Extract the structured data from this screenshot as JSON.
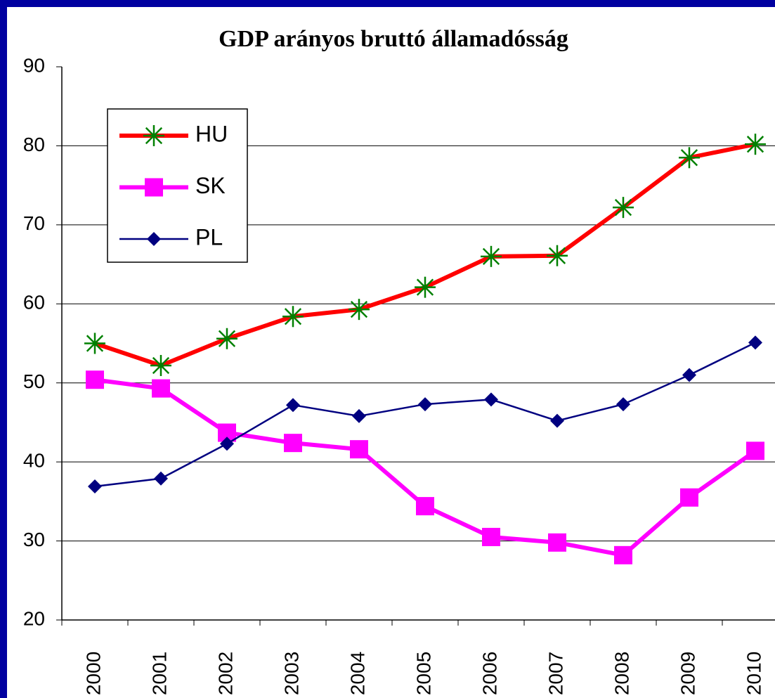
{
  "chart_data": {
    "type": "line",
    "title": "GDP arányos bruttó államadósság",
    "categories": [
      "2000",
      "2001",
      "2002",
      "2003",
      "2004",
      "2005",
      "2006",
      "2007",
      "2008",
      "2009",
      "2010"
    ],
    "series": [
      {
        "name": "HU",
        "color": "#ff0000",
        "marker_color": "#008000",
        "marker": "asterisk",
        "values": [
          55.0,
          52.2,
          55.6,
          58.4,
          59.3,
          62.1,
          66.0,
          66.1,
          72.2,
          78.5,
          80.2
        ]
      },
      {
        "name": "SK",
        "color": "#ff00ff",
        "marker_color": "#ff00ff",
        "marker": "square",
        "values": [
          50.4,
          49.3,
          43.7,
          42.4,
          41.6,
          34.4,
          30.5,
          29.8,
          28.2,
          35.5,
          41.4
        ]
      },
      {
        "name": "PL",
        "color": "#000080",
        "marker_color": "#000080",
        "marker": "diamond",
        "values": [
          36.9,
          37.9,
          42.3,
          47.2,
          45.8,
          47.3,
          47.9,
          45.2,
          47.3,
          51.0,
          55.1
        ]
      }
    ],
    "ylim": [
      20,
      90
    ],
    "yticks": [
      20,
      30,
      40,
      50,
      60,
      70,
      80,
      90
    ],
    "grid": true
  }
}
